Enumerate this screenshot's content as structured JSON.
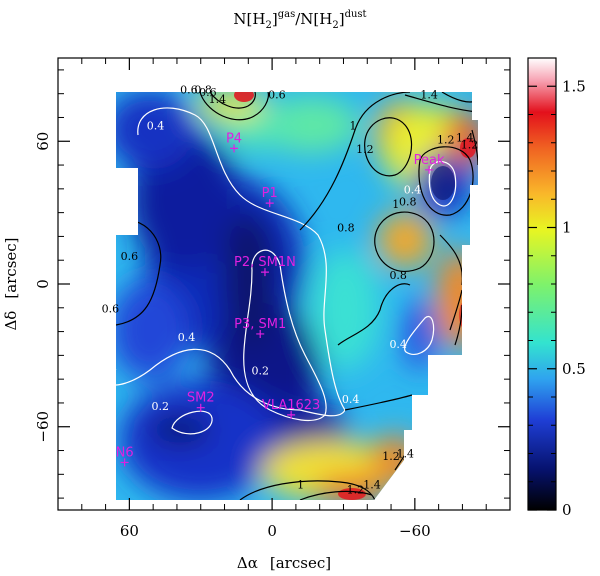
{
  "chart_data": {
    "type": "heatmap",
    "title": {
      "main": "N[H",
      "sub1": "2",
      "sup1": "gas",
      "slash": "/N[H",
      "sub2": "2",
      "sup2": "dust"
    },
    "xlabel": {
      "main": "Δα",
      "units": "[arcsec]"
    },
    "ylabel": {
      "main": "Δδ",
      "units": "[arcsec]"
    },
    "xlim": [
      90,
      -100
    ],
    "ylim": [
      -95,
      95
    ],
    "xticks": [
      60,
      0,
      -60
    ],
    "yticks": [
      60,
      0,
      -60
    ],
    "colorbar": {
      "min": 0,
      "max": 1.6,
      "ticks": [
        0,
        0.5,
        1,
        1.5
      ]
    },
    "colormap": [
      "#000000",
      "#06126e",
      "#1f3fd6",
      "#2fa3ef",
      "#33e3cf",
      "#7ff26a",
      "#e8f522",
      "#f9b72a",
      "#f06322",
      "#e3101c",
      "#f7a2b2",
      "#ffffff"
    ],
    "mapped_region_ra": [
      -85,
      70
    ],
    "mapped_region_dec": [
      -91,
      81
    ],
    "sources": [
      {
        "name": "P4",
        "ra": 16,
        "dec": 57
      },
      {
        "name": "P1",
        "ra": 1,
        "dec": 34
      },
      {
        "name": "P2, SM1N",
        "ra": 3,
        "dec": 5
      },
      {
        "name": "P3, SM1",
        "ra": 5,
        "dec": -21
      },
      {
        "name": "SM2",
        "ra": 30,
        "dec": -52
      },
      {
        "name": "VLA1623",
        "ra": -8,
        "dec": -55
      },
      {
        "name": "N6",
        "ra": 62,
        "dec": -75
      },
      {
        "name": "Peak",
        "ra": -66,
        "dec": 48
      }
    ],
    "contour_levels": [
      0.2,
      0.4,
      0.6,
      0.8,
      1,
      1.2,
      1.4
    ],
    "contour_labels": [
      {
        "text": "0.4",
        "ra": 49,
        "dec": 65
      },
      {
        "text": "0.4",
        "ra": 36,
        "dec": -24
      },
      {
        "text": "0.4",
        "ra": 69,
        "dec": -37
      },
      {
        "text": "0.4",
        "ra": -33,
        "dec": -50
      },
      {
        "text": "0.4",
        "ra": -59,
        "dec": 38
      },
      {
        "text": "0.4",
        "ra": -53,
        "dec": -27
      },
      {
        "text": "0.2",
        "ra": 5,
        "dec": -38
      },
      {
        "text": "0.2",
        "ra": 47,
        "dec": -53
      },
      {
        "text": "0.6",
        "ra": 27,
        "dec": 79
      },
      {
        "text": "0.6",
        "ra": -2,
        "dec": 78
      },
      {
        "text": "0.6",
        "ra": 68,
        "dec": -12
      },
      {
        "text": "0.6",
        "ra": 60,
        "dec": 10
      },
      {
        "text": "0.6",
        "ra": 35,
        "dec": 80
      },
      {
        "text": "0.8",
        "ra": 29,
        "dec": 80
      },
      {
        "text": "0.8",
        "ra": -31,
        "dec": 22
      },
      {
        "text": "0.8",
        "ra": -57,
        "dec": 33
      },
      {
        "text": "0.8",
        "ra": -53,
        "dec": 2
      },
      {
        "text": "1",
        "ra": -34,
        "dec": 65
      },
      {
        "text": "1",
        "ra": -52,
        "dec": 32
      },
      {
        "text": "1",
        "ra": -12,
        "dec": -86
      },
      {
        "text": "1.2",
        "ra": -39,
        "dec": 55
      },
      {
        "text": "1.2",
        "ra": -73,
        "dec": 59
      },
      {
        "text": "1.2",
        "ra": -50,
        "dec": -74
      },
      {
        "text": "1.2",
        "ra": -35,
        "dec": -88
      },
      {
        "text": "1.2",
        "ra": -83,
        "dec": 57
      },
      {
        "text": "1.4",
        "ra": 23,
        "dec": 76
      },
      {
        "text": "1.4",
        "ra": -66,
        "dec": 78
      },
      {
        "text": "1.4",
        "ra": -56,
        "dec": -73
      },
      {
        "text": "1.4",
        "ra": -42,
        "dec": -86
      },
      {
        "text": "1.4",
        "ra": -81,
        "dec": 60
      }
    ]
  }
}
